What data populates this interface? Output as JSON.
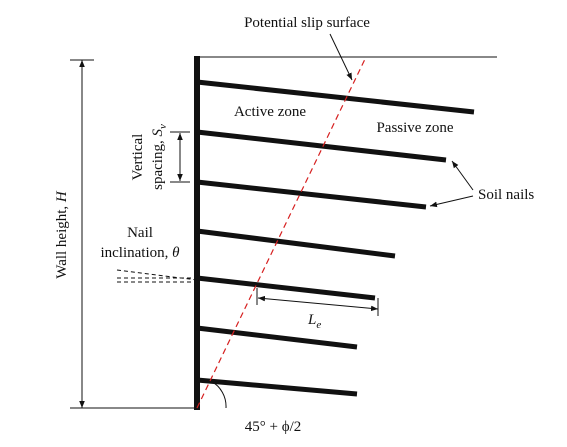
{
  "diagram": {
    "slip_surface_label": "Potential slip surface",
    "active_zone_label": "Active zone",
    "passive_zone_label": "Passive zone",
    "soil_nails_label": "Soil nails",
    "wall_height_label": {
      "text": "Wall height, ",
      "symbol": "H"
    },
    "vertical_spacing_label": {
      "line1": "Vertical",
      "line2": "spacing, ",
      "symbol": "S",
      "sub": "v"
    },
    "nail_inclination_label": {
      "line1": "Nail",
      "line2": "inclination, ",
      "symbol": "θ"
    },
    "length_label": {
      "symbol": "L",
      "sub": "e"
    },
    "angle_label": "45° + ϕ/2"
  }
}
